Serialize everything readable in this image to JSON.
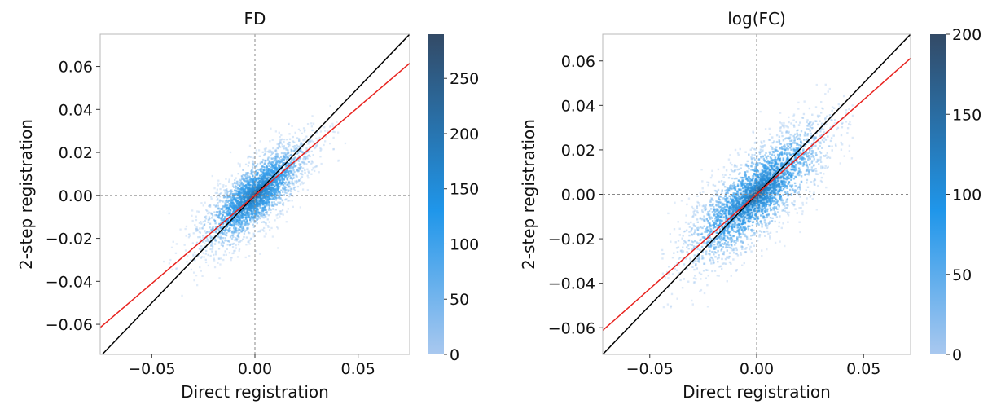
{
  "chart_data": [
    {
      "type": "heatmap",
      "title": "FD",
      "xlabel": "Direct registration",
      "ylabel": "2-step registration",
      "xlim": [
        -0.075,
        0.075
      ],
      "ylim": [
        -0.074,
        0.075
      ],
      "x_ticks": [
        -0.05,
        0.0,
        0.05
      ],
      "x_tick_labels": [
        "−0.05",
        "0.00",
        "0.05"
      ],
      "y_ticks": [
        0.06,
        0.04,
        0.02,
        0.0,
        -0.02,
        -0.04,
        -0.06
      ],
      "y_tick_labels": [
        "0.06",
        "0.04",
        "0.02",
        "0.00",
        "−0.02",
        "−0.04",
        "−0.06"
      ],
      "reference_lines": {
        "x": 0.0,
        "y": 0.0,
        "style": "dashed",
        "color": "#888888"
      },
      "identity_line": {
        "slope": 1.0,
        "intercept": 0.0,
        "color": "#000000"
      },
      "fit_line": {
        "slope": 0.82,
        "intercept": 0.0,
        "color": "#e8231f"
      },
      "density": {
        "center": [
          0.0,
          0.0
        ],
        "spread_major": 0.018,
        "spread_minor": 0.0065,
        "max_x": 0.045,
        "min_x": -0.045
      },
      "colorbar": {
        "min": 0,
        "max": 290,
        "ticks": [
          0,
          50,
          100,
          150,
          200,
          250
        ],
        "tick_labels": [
          "0",
          "50",
          "100",
          "150",
          "200",
          "250"
        ],
        "colors": [
          "#a9c8ef",
          "#1f96ea",
          "#334a66"
        ]
      }
    },
    {
      "type": "heatmap",
      "title": "log(FC)",
      "xlabel": "Direct registration",
      "ylabel": "2-step registration",
      "xlim": [
        -0.072,
        0.072
      ],
      "ylim": [
        -0.072,
        0.072
      ],
      "x_ticks": [
        -0.05,
        0.0,
        0.05
      ],
      "x_tick_labels": [
        "−0.05",
        "0.00",
        "0.05"
      ],
      "y_ticks": [
        0.06,
        0.04,
        0.02,
        0.0,
        -0.02,
        -0.04,
        -0.06
      ],
      "y_tick_labels": [
        "0.06",
        "0.04",
        "0.02",
        "0.00",
        "−0.02",
        "−0.04",
        "−0.06"
      ],
      "reference_lines": {
        "x": 0.0,
        "y": 0.0,
        "style": "dashed",
        "color": "#888888"
      },
      "identity_line": {
        "slope": 1.0,
        "intercept": 0.0,
        "color": "#000000"
      },
      "fit_line": {
        "slope": 0.85,
        "intercept": 0.0,
        "color": "#e8231f"
      },
      "density": {
        "center": [
          0.0,
          0.0
        ],
        "spread_major": 0.024,
        "spread_minor": 0.008,
        "max_x": 0.045,
        "min_x": -0.045
      },
      "colorbar": {
        "min": 0,
        "max": 200,
        "ticks": [
          0,
          50,
          100,
          150,
          200
        ],
        "tick_labels": [
          "0",
          "50",
          "100",
          "150",
          "200"
        ],
        "colors": [
          "#a9c8ef",
          "#1f96ea",
          "#334a66"
        ]
      }
    }
  ]
}
